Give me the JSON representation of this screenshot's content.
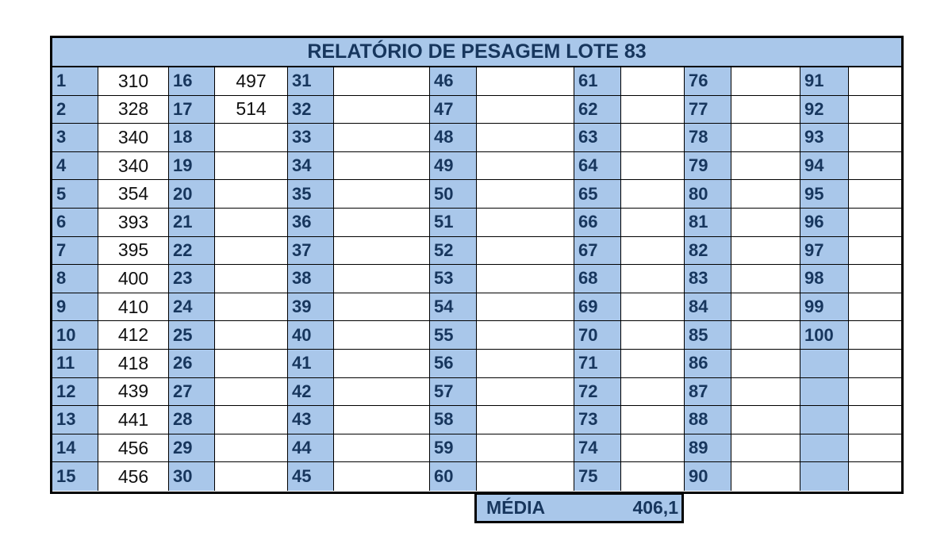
{
  "title": "RELATÓRIO DE PESAGEM LOTE 83",
  "columns": [
    {
      "numbers": [
        "1",
        "2",
        "3",
        "4",
        "5",
        "6",
        "7",
        "8",
        "9",
        "10",
        "11",
        "12",
        "13",
        "14",
        "15"
      ],
      "values": [
        "310",
        "328",
        "340",
        "340",
        "354",
        "393",
        "395",
        "400",
        "410",
        "412",
        "418",
        "439",
        "441",
        "456",
        "456"
      ]
    },
    {
      "numbers": [
        "16",
        "17",
        "18",
        "19",
        "20",
        "21",
        "22",
        "23",
        "24",
        "25",
        "26",
        "27",
        "28",
        "29",
        "30"
      ],
      "values": [
        "497",
        "514",
        "",
        "",
        "",
        "",
        "",
        "",
        "",
        "",
        "",
        "",
        "",
        "",
        ""
      ]
    },
    {
      "numbers": [
        "31",
        "32",
        "33",
        "34",
        "35",
        "36",
        "37",
        "38",
        "39",
        "40",
        "41",
        "42",
        "43",
        "44",
        "45"
      ],
      "values": [
        "",
        "",
        "",
        "",
        "",
        "",
        "",
        "",
        "",
        "",
        "",
        "",
        "",
        "",
        ""
      ]
    },
    {
      "numbers": [
        "46",
        "47",
        "48",
        "49",
        "50",
        "51",
        "52",
        "53",
        "54",
        "55",
        "56",
        "57",
        "58",
        "59",
        "60"
      ],
      "values": [
        "",
        "",
        "",
        "",
        "",
        "",
        "",
        "",
        "",
        "",
        "",
        "",
        "",
        "",
        ""
      ]
    },
    {
      "numbers": [
        "61",
        "62",
        "63",
        "64",
        "65",
        "66",
        "67",
        "68",
        "69",
        "70",
        "71",
        "72",
        "73",
        "74",
        "75"
      ],
      "values": [
        "",
        "",
        "",
        "",
        "",
        "",
        "",
        "",
        "",
        "",
        "",
        "",
        "",
        "",
        ""
      ]
    },
    {
      "numbers": [
        "76",
        "77",
        "78",
        "79",
        "80",
        "81",
        "82",
        "83",
        "84",
        "85",
        "86",
        "87",
        "88",
        "89",
        "90"
      ],
      "values": [
        "",
        "",
        "",
        "",
        "",
        "",
        "",
        "",
        "",
        "",
        "",
        "",
        "",
        "",
        ""
      ]
    },
    {
      "numbers": [
        "91",
        "92",
        "93",
        "94",
        "95",
        "96",
        "97",
        "98",
        "99",
        "100",
        "",
        "",
        "",
        "",
        ""
      ],
      "values": [
        "",
        "",
        "",
        "",
        "",
        "",
        "",
        "",
        "",
        "",
        "",
        "",
        "",
        "",
        ""
      ]
    }
  ],
  "summary": {
    "label": "MÉDIA",
    "value": "406,1"
  }
}
